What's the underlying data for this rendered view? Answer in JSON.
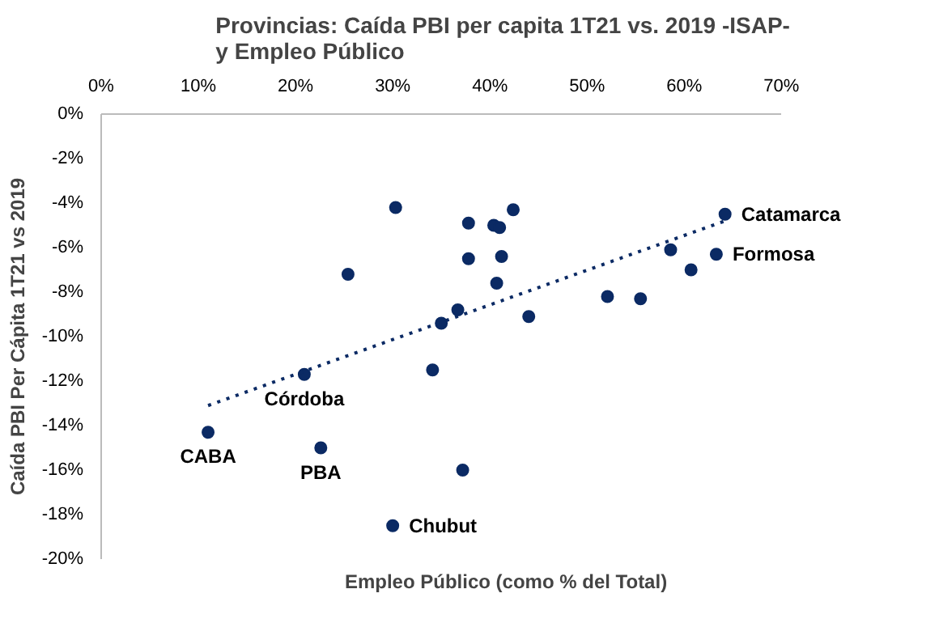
{
  "chart_data": {
    "type": "scatter",
    "title": "Provincias:  Caída PBI per capita 1T21 vs. 2019 -ISAP-\ny Empleo  Público",
    "xlabel": "Empleo Público (como % del Total)",
    "ylabel": "Caída PBI Per Cápita 1T21 vs 2019",
    "series": [
      {
        "color": "#0b2a64",
        "x": [
          11.0,
          20.9,
          22.6,
          25.4,
          30.3,
          30.0,
          34.1,
          35.0,
          36.7,
          37.2,
          37.8,
          37.8,
          40.4,
          40.7,
          41.0,
          41.2,
          42.4,
          44.0,
          52.1,
          55.5,
          58.6,
          60.7,
          63.3,
          64.2
        ],
        "values": [
          -14.3,
          -11.7,
          -15.0,
          -7.2,
          -4.2,
          -18.5,
          -11.5,
          -9.4,
          -8.8,
          -16.0,
          -4.9,
          -6.5,
          -5.0,
          -7.6,
          -5.1,
          -6.4,
          -4.3,
          -9.1,
          -8.2,
          -8.3,
          -6.1,
          -7.0,
          -6.3,
          -4.5
        ]
      },
      {
        "type": "line",
        "color": "#0b2a64",
        "line_style": "dotted",
        "marker": "none",
        "x": [
          11.0,
          64.2
        ],
        "values": [
          -13.1,
          -4.8
        ]
      }
    ],
    "marker": "circle",
    "grid": false,
    "xlim": [
      0,
      70
    ],
    "xticks": [
      {
        "value": 0,
        "label": "0%"
      },
      {
        "value": 10,
        "label": "10%"
      },
      {
        "value": 20,
        "label": "20%"
      },
      {
        "value": 30,
        "label": "30%"
      },
      {
        "value": 40,
        "label": "40%"
      },
      {
        "value": 50,
        "label": "50%"
      },
      {
        "value": 60,
        "label": "60%"
      },
      {
        "value": 70,
        "label": "70%"
      }
    ],
    "ylim": [
      -20,
      0
    ],
    "yticks": [
      {
        "value": 0,
        "label": "0%"
      },
      {
        "value": -2,
        "label": "-2%"
      },
      {
        "value": -4,
        "label": "-4%"
      },
      {
        "value": -6,
        "label": "-6%"
      },
      {
        "value": -8,
        "label": "-8%"
      },
      {
        "value": -10,
        "label": "-10%"
      },
      {
        "value": -12,
        "label": "-12%"
      },
      {
        "value": -14,
        "label": "-14%"
      },
      {
        "value": -16,
        "label": "-16%"
      },
      {
        "value": -18,
        "label": "-18%"
      },
      {
        "value": -20,
        "label": "-20%"
      }
    ],
    "annotations": [
      {
        "text": "CABA",
        "x": 11.0,
        "y": -14.3
      },
      {
        "text": "Córdoba",
        "x": 20.9,
        "y": -11.7
      },
      {
        "text": "PBA",
        "x": 22.6,
        "y": -15.0
      },
      {
        "text": "Chubut",
        "x": 30.0,
        "y": -18.5
      },
      {
        "text": "Formosa",
        "x": 63.3,
        "y": -6.3
      },
      {
        "text": "Catamarca",
        "x": 64.2,
        "y": -4.5
      }
    ]
  }
}
